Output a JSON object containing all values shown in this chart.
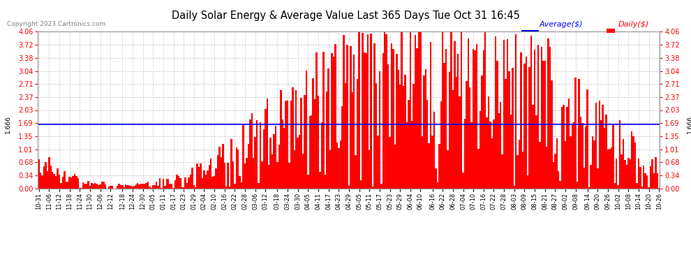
{
  "title": "Daily Solar Energy & Average Value Last 365 Days Tue Oct 31 16:45",
  "copyright": "Copyright 2023 Cartronics.com",
  "bar_color": "#ff0000",
  "average_color": "#0000ff",
  "average_value": 1.666,
  "ylim": [
    0.0,
    4.06
  ],
  "yticks": [
    0.0,
    0.34,
    0.68,
    1.01,
    1.35,
    1.69,
    2.03,
    2.37,
    2.71,
    3.04,
    3.38,
    3.72,
    4.06
  ],
  "background_color": "#ffffff",
  "grid_color": "#cccccc",
  "x_labels": [
    "10-31",
    "11-06",
    "11-12",
    "11-18",
    "11-24",
    "11-30",
    "12-06",
    "12-12",
    "12-18",
    "12-24",
    "12-30",
    "01-05",
    "01-11",
    "01-17",
    "01-23",
    "01-29",
    "02-04",
    "02-10",
    "02-16",
    "02-22",
    "02-28",
    "03-06",
    "03-12",
    "03-18",
    "03-24",
    "03-30",
    "04-05",
    "04-11",
    "04-17",
    "04-23",
    "04-29",
    "05-05",
    "05-11",
    "05-17",
    "05-23",
    "05-29",
    "06-04",
    "06-10",
    "06-16",
    "06-22",
    "06-28",
    "07-04",
    "07-10",
    "07-16",
    "07-22",
    "07-28",
    "08-03",
    "08-09",
    "08-15",
    "08-21",
    "08-27",
    "09-02",
    "09-08",
    "09-14",
    "09-20",
    "09-26",
    "10-02",
    "10-08",
    "10-14",
    "10-20",
    "10-26"
  ],
  "legend_avg_label": "Average($)",
  "legend_daily_label": "Daily($)"
}
